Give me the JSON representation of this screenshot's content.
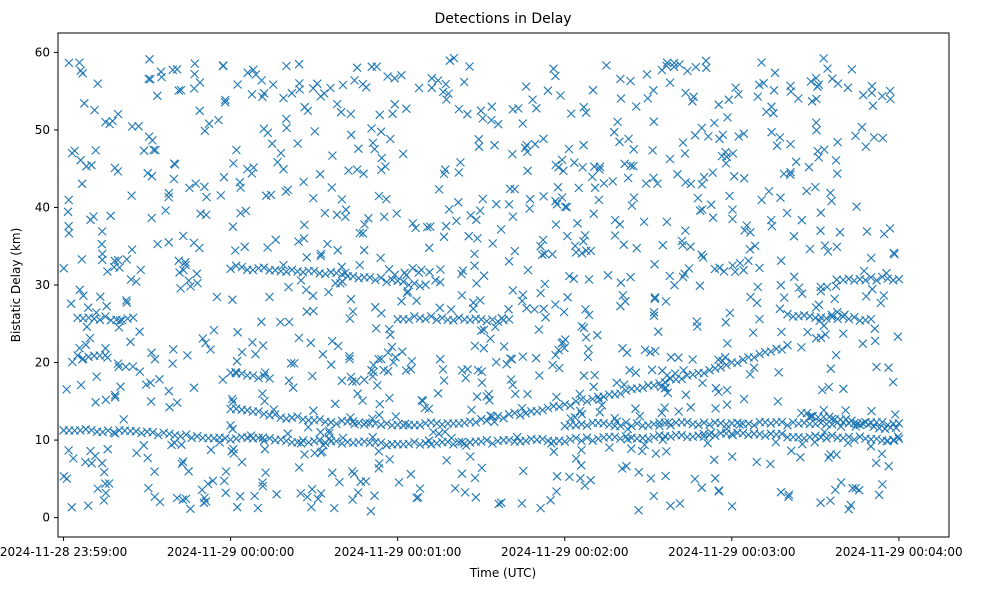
{
  "chart_data": {
    "type": "scatter",
    "title": "Detections in Delay",
    "xlabel": "Time (UTC)",
    "ylabel": "Bistatic Delay (km)",
    "marker": "x",
    "color": "#1f77b4",
    "grid": false,
    "legend": "none",
    "xlim": [
      "2024-11-28 23:58:58",
      "2024-11-29 00:04:18"
    ],
    "ylim": [
      -2.5,
      62.5
    ],
    "x_ticks": [
      "2024-11-28 23:59:00",
      "2024-11-29 00:00:00",
      "2024-11-29 00:01:00",
      "2024-11-29 00:02:00",
      "2024-11-29 00:03:00",
      "2024-11-29 00:04:00"
    ],
    "y_ticks": [
      0,
      10,
      20,
      30,
      40,
      50,
      60
    ],
    "tracks": [
      {
        "name": "",
        "x": [
          "2024-11-29 00:00:00",
          "2024-11-29 00:00:30",
          "2024-11-29 00:01:00",
          "2024-11-29 00:01:30",
          "2024-11-29 00:02:00",
          "2024-11-29 00:02:30",
          "2024-11-29 00:03:00",
          "2024-11-29 00:03:20"
        ],
        "y": [
          14.0,
          12.5,
          11.8,
          12.5,
          14.5,
          17.0,
          19.8,
          22.0
        ]
      },
      {
        "name": "",
        "x": [
          "2024-11-29 00:00:00",
          "2024-11-29 00:00:40",
          "2024-11-29 00:01:10"
        ],
        "y": [
          32.3,
          31.4,
          29.9
        ]
      },
      {
        "name": "",
        "x": [
          "2024-11-29 00:03:20",
          "2024-11-29 00:03:50"
        ],
        "y": [
          26.2,
          25.5
        ]
      },
      {
        "name": "",
        "x": [
          "2024-11-28 23:59:00",
          "2024-11-29 00:00:00",
          "2024-11-29 00:01:00",
          "2024-11-29 00:02:00",
          "2024-11-29 00:03:00",
          "2024-11-29 00:04:00"
        ],
        "y": [
          11.5,
          10.2,
          9.5,
          10.0,
          10.8,
          10.0
        ]
      },
      {
        "name": "",
        "x": [
          "2024-11-29 00:03:25",
          "2024-11-29 00:04:00"
        ],
        "y": [
          13.5,
          11.3
        ]
      },
      {
        "name": "",
        "x": [
          "2024-11-29 00:02:00",
          "2024-11-29 00:04:00"
        ],
        "y": [
          12.0,
          12.2
        ]
      },
      {
        "name": "",
        "x": [
          "2024-11-29 00:00:00",
          "2024-11-29 00:00:15"
        ],
        "y": [
          18.5,
          18.0
        ]
      },
      {
        "name": "",
        "x": [
          "2024-11-28 23:59:05",
          "2024-11-28 23:59:15"
        ],
        "y": [
          20.7,
          20.7
        ]
      },
      {
        "name": "",
        "x": [
          "2024-11-29 00:03:40",
          "2024-11-29 00:04:00"
        ],
        "y": [
          30.6,
          30.9
        ]
      },
      {
        "name": "",
        "x": [
          "2024-11-28 23:59:05",
          "2024-11-28 23:59:25"
        ],
        "y": [
          25.8,
          25.6
        ]
      },
      {
        "name": "",
        "x": [
          "2024-11-29 00:01:00",
          "2024-11-29 00:01:40"
        ],
        "y": [
          25.8,
          25.5
        ]
      }
    ],
    "scatter_noise": {
      "x_range": [
        "2024-11-28 23:59:00",
        "2024-11-29 00:04:00"
      ],
      "y_range": [
        0.8,
        59.5
      ],
      "count": 1100
    }
  }
}
